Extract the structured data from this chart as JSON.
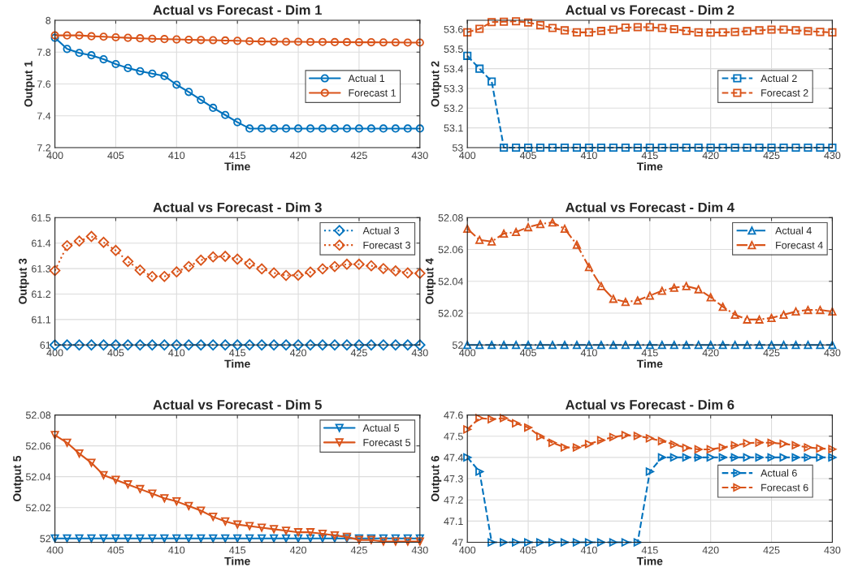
{
  "chart_data": [
    {
      "type": "line",
      "title": "Actual vs Forecast - Dim 1",
      "xlabel": "Time",
      "ylabel": "Output 1",
      "x": [
        400,
        401,
        402,
        403,
        404,
        405,
        406,
        407,
        408,
        409,
        410,
        411,
        412,
        413,
        414,
        415,
        416,
        417,
        418,
        419,
        420,
        421,
        422,
        423,
        424,
        425,
        426,
        427,
        428,
        429,
        430
      ],
      "xlim": [
        400,
        430
      ],
      "xticks": [
        400,
        405,
        410,
        415,
        420,
        425,
        430
      ],
      "ylim": [
        7.2,
        8
      ],
      "yticks": [
        7.2,
        7.4,
        7.6,
        7.8,
        8
      ],
      "grid": true,
      "legend": "right",
      "marker": "circle",
      "line_style": "solid",
      "series": [
        {
          "name": "Actual 1",
          "color": "#0072bd",
          "values": [
            7.89,
            7.82,
            7.795,
            7.78,
            7.755,
            7.725,
            7.7,
            7.68,
            7.665,
            7.65,
            7.595,
            7.55,
            7.5,
            7.45,
            7.405,
            7.36,
            7.32,
            7.32,
            7.32,
            7.32,
            7.32,
            7.32,
            7.32,
            7.32,
            7.32,
            7.32,
            7.32,
            7.32,
            7.32,
            7.32,
            7.32
          ]
        },
        {
          "name": "Forecast 1",
          "color": "#d95319",
          "values": [
            7.905,
            7.905,
            7.905,
            7.9,
            7.897,
            7.893,
            7.89,
            7.887,
            7.884,
            7.882,
            7.88,
            7.878,
            7.876,
            7.875,
            7.873,
            7.871,
            7.869,
            7.867,
            7.866,
            7.865,
            7.865,
            7.864,
            7.864,
            7.863,
            7.863,
            7.862,
            7.862,
            7.861,
            7.861,
            7.86,
            7.86
          ]
        }
      ]
    },
    {
      "type": "line",
      "title": "Actual vs Forecast - Dim 2",
      "xlabel": "Time",
      "ylabel": "Output 2",
      "x": [
        400,
        401,
        402,
        403,
        404,
        405,
        406,
        407,
        408,
        409,
        410,
        411,
        412,
        413,
        414,
        415,
        416,
        417,
        418,
        419,
        420,
        421,
        422,
        423,
        424,
        425,
        426,
        427,
        428,
        429,
        430
      ],
      "xlim": [
        400,
        430
      ],
      "xticks": [
        400,
        405,
        410,
        415,
        420,
        425,
        430
      ],
      "ylim": [
        53,
        53.645
      ],
      "yticks": [
        53,
        53.1,
        53.2,
        53.3,
        53.4,
        53.5,
        53.6
      ],
      "grid": true,
      "legend": "right",
      "marker": "square",
      "line_style": "dashed",
      "series": [
        {
          "name": "Actual 2",
          "color": "#0072bd",
          "values": [
            53.465,
            53.4,
            53.335,
            53,
            53,
            53,
            53,
            53,
            53,
            53,
            53,
            53,
            53,
            53,
            53,
            53,
            53,
            53,
            53,
            53,
            53,
            53,
            53,
            53,
            53,
            53,
            53,
            53,
            53,
            53,
            53
          ]
        },
        {
          "name": "Forecast 2",
          "color": "#d95319",
          "values": [
            53.584,
            53.602,
            53.636,
            53.638,
            53.64,
            53.634,
            53.62,
            53.606,
            53.594,
            53.584,
            53.584,
            53.591,
            53.598,
            53.608,
            53.61,
            53.61,
            53.606,
            53.6,
            53.591,
            53.584,
            53.583,
            53.584,
            53.586,
            53.59,
            53.594,
            53.598,
            53.598,
            53.594,
            53.59,
            53.586,
            53.584
          ]
        }
      ]
    },
    {
      "type": "line",
      "title": "Actual vs Forecast - Dim 3",
      "xlabel": "Time",
      "ylabel": "Output 3",
      "x": [
        400,
        401,
        402,
        403,
        404,
        405,
        406,
        407,
        408,
        409,
        410,
        411,
        412,
        413,
        414,
        415,
        416,
        417,
        418,
        419,
        420,
        421,
        422,
        423,
        424,
        425,
        426,
        427,
        428,
        429,
        430
      ],
      "xlim": [
        400,
        430
      ],
      "xticks": [
        400,
        405,
        410,
        415,
        420,
        425,
        430
      ],
      "ylim": [
        61,
        61.5
      ],
      "yticks": [
        61,
        61.1,
        61.2,
        61.3,
        61.4,
        61.5
      ],
      "grid": true,
      "legend": "top right",
      "marker": "diamond",
      "line_style": "dotted",
      "series": [
        {
          "name": "Actual 3",
          "color": "#0072bd",
          "values": [
            61,
            61,
            61,
            61,
            61,
            61,
            61,
            61,
            61,
            61,
            61,
            61,
            61,
            61,
            61,
            61,
            61,
            61,
            61,
            61,
            61,
            61,
            61,
            61,
            61,
            61,
            61,
            61,
            61,
            61,
            61
          ]
        },
        {
          "name": "Forecast 3",
          "color": "#d95319",
          "values": [
            61.292,
            61.39,
            61.408,
            61.426,
            61.403,
            61.371,
            61.328,
            61.294,
            61.269,
            61.269,
            61.287,
            61.308,
            61.333,
            61.346,
            61.348,
            61.337,
            61.319,
            61.299,
            61.283,
            61.273,
            61.274,
            61.286,
            61.299,
            61.308,
            61.317,
            61.317,
            61.311,
            61.3,
            61.291,
            61.283,
            61.281
          ]
        }
      ]
    },
    {
      "type": "line",
      "title": "Actual vs Forecast - Dim 4",
      "xlabel": "Time",
      "ylabel": "Output 4",
      "x": [
        400,
        401,
        402,
        403,
        404,
        405,
        406,
        407,
        408,
        409,
        410,
        411,
        412,
        413,
        414,
        415,
        416,
        417,
        418,
        419,
        420,
        421,
        422,
        423,
        424,
        425,
        426,
        427,
        428,
        429,
        430
      ],
      "xlim": [
        400,
        430
      ],
      "xticks": [
        400,
        405,
        410,
        415,
        420,
        425,
        430
      ],
      "ylim": [
        52,
        52.08
      ],
      "yticks": [
        52,
        52.02,
        52.04,
        52.06,
        52.08
      ],
      "grid": true,
      "legend": "top right",
      "marker": "triangle",
      "line_style": "dashdot",
      "series": [
        {
          "name": "Actual 4",
          "color": "#0072bd",
          "values": [
            52,
            52,
            52,
            52,
            52,
            52,
            52,
            52,
            52,
            52,
            52,
            52,
            52,
            52,
            52,
            52,
            52,
            52,
            52,
            52,
            52,
            52,
            52,
            52,
            52,
            52,
            52,
            52,
            52,
            52,
            52
          ]
        },
        {
          "name": "Forecast 4",
          "color": "#d95319",
          "values": [
            52.073,
            52.066,
            52.065,
            52.07,
            52.071,
            52.074,
            52.076,
            52.077,
            52.073,
            52.063,
            52.049,
            52.037,
            52.029,
            52.027,
            52.028,
            52.031,
            52.034,
            52.036,
            52.037,
            52.035,
            52.03,
            52.024,
            52.019,
            52.016,
            52.016,
            52.017,
            52.019,
            52.021,
            52.022,
            52.022,
            52.021
          ]
        }
      ]
    },
    {
      "type": "line",
      "title": "Actual vs Forecast - Dim 5",
      "xlabel": "Time",
      "ylabel": "Output 5",
      "x": [
        400,
        401,
        402,
        403,
        404,
        405,
        406,
        407,
        408,
        409,
        410,
        411,
        412,
        413,
        414,
        415,
        416,
        417,
        418,
        419,
        420,
        421,
        422,
        423,
        424,
        425,
        426,
        427,
        428,
        429,
        430
      ],
      "xlim": [
        400,
        430
      ],
      "xticks": [
        400,
        405,
        410,
        415,
        420,
        425,
        430
      ],
      "ylim": [
        51.9975,
        52.08
      ],
      "yticks": [
        52,
        52.02,
        52.04,
        52.06,
        52.08
      ],
      "grid": true,
      "legend": "top right",
      "marker": "triangle_down",
      "line_style": "solid",
      "series": [
        {
          "name": "Actual 5",
          "color": "#0072bd",
          "values": [
            52,
            52,
            52,
            52,
            52,
            52,
            52,
            52,
            52,
            52,
            52,
            52,
            52,
            52,
            52,
            52,
            52,
            52,
            52,
            52,
            52,
            52,
            52,
            52,
            52,
            52,
            52,
            52,
            52,
            52,
            52
          ]
        },
        {
          "name": "Forecast 5",
          "color": "#d95319",
          "values": [
            52.067,
            52.062,
            52.055,
            52.049,
            52.041,
            52.038,
            52.035,
            52.032,
            52.029,
            52.026,
            52.024,
            52.021,
            52.018,
            52.014,
            52.011,
            52.009,
            52.008,
            52.007,
            52.006,
            52.005,
            52.004,
            52.004,
            52.003,
            52.002,
            52.001,
            51.999,
            51.999,
            51.998,
            51.998,
            51.998,
            51.998
          ]
        }
      ]
    },
    {
      "type": "line",
      "title": "Actual vs Forecast - Dim 6",
      "xlabel": "Time",
      "ylabel": "Output 6",
      "x": [
        400,
        401,
        402,
        403,
        404,
        405,
        406,
        407,
        408,
        409,
        410,
        411,
        412,
        413,
        414,
        415,
        416,
        417,
        418,
        419,
        420,
        421,
        422,
        423,
        424,
        425,
        426,
        427,
        428,
        429,
        430
      ],
      "xlim": [
        400,
        430
      ],
      "xticks": [
        400,
        405,
        410,
        415,
        420,
        425,
        430
      ],
      "ylim": [
        47,
        47.6
      ],
      "yticks": [
        47,
        47.1,
        47.2,
        47.3,
        47.4,
        47.5,
        47.6
      ],
      "grid": true,
      "legend": "right",
      "marker": "triangle_right",
      "line_style": "dashed",
      "series": [
        {
          "name": "Actual 6",
          "color": "#0072bd",
          "values": [
            47.4,
            47.333,
            47,
            47,
            47,
            47,
            47,
            47,
            47,
            47,
            47,
            47,
            47,
            47,
            47,
            47.333,
            47.4,
            47.4,
            47.4,
            47.4,
            47.4,
            47.4,
            47.4,
            47.4,
            47.4,
            47.4,
            47.4,
            47.4,
            47.4,
            47.4,
            47.4
          ]
        },
        {
          "name": "Forecast 6",
          "color": "#d95319",
          "values": [
            47.532,
            47.585,
            47.58,
            47.585,
            47.561,
            47.541,
            47.499,
            47.469,
            47.447,
            47.447,
            47.463,
            47.481,
            47.496,
            47.505,
            47.501,
            47.49,
            47.477,
            47.461,
            47.445,
            47.438,
            47.438,
            47.447,
            47.457,
            47.467,
            47.47,
            47.469,
            47.464,
            47.457,
            47.447,
            47.442,
            47.439
          ]
        }
      ]
    }
  ]
}
